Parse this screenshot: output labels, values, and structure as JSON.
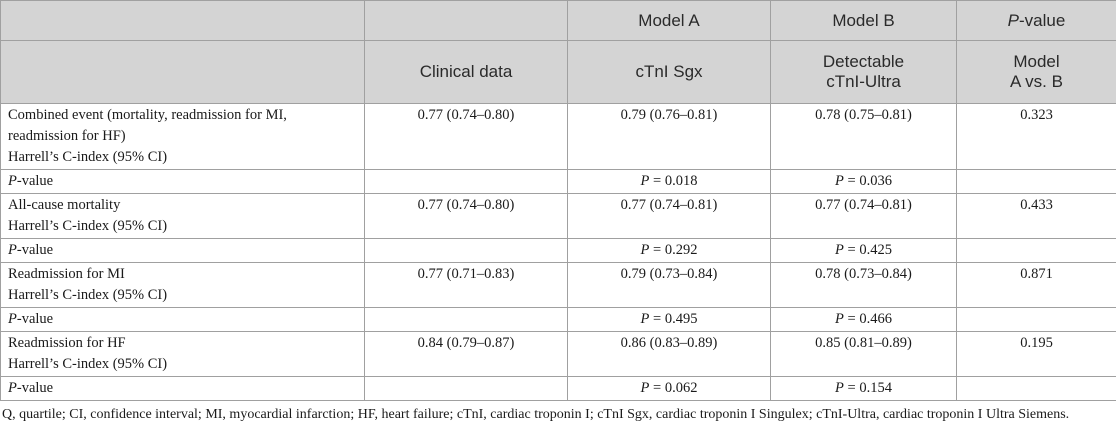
{
  "header": {
    "row1": {
      "model_a": "Model A",
      "model_b": "Model B",
      "pvalue_italic": "P",
      "pvalue_rest": "-value"
    },
    "row2": {
      "clinical": "Clinical data",
      "model_a": "cTnI Sgx",
      "model_b_line1": "Detectable",
      "model_b_line2": "cTnI-Ultra",
      "pvalue_line1": "Model",
      "pvalue_line2": "A vs. B"
    }
  },
  "rows": [
    {
      "label_lines": [
        "Combined event (mortality, readmission for MI,",
        "readmission for HF)",
        "Harrell’s C-index (95% CI)"
      ],
      "clinical": "0.77 (0.74–0.80)",
      "model_a": "0.79 (0.76–0.81)",
      "model_b": "0.78 (0.75–0.81)",
      "p": "0.323"
    },
    {
      "label_italic": "P",
      "label_rest": "-value",
      "model_a_italic": "P",
      "model_a_rest": " = 0.018",
      "model_b_italic": "P",
      "model_b_rest": " = 0.036"
    },
    {
      "label_lines": [
        "All-cause mortality",
        "Harrell’s C-index (95% CI)"
      ],
      "clinical": "0.77 (0.74–0.80)",
      "model_a": "0.77 (0.74–0.81)",
      "model_b": "0.77 (0.74–0.81)",
      "p": "0.433"
    },
    {
      "label_italic": "P",
      "label_rest": "-value",
      "model_a_italic": "P",
      "model_a_rest": " = 0.292",
      "model_b_italic": "P",
      "model_b_rest": " = 0.425"
    },
    {
      "label_lines": [
        "Readmission for MI",
        "Harrell’s C-index (95% CI)"
      ],
      "clinical": "0.77 (0.71–0.83)",
      "model_a": "0.79 (0.73–0.84)",
      "model_b": "0.78 (0.73–0.84)",
      "p": "0.871"
    },
    {
      "label_italic": "P",
      "label_rest": "-value",
      "model_a_italic": "P",
      "model_a_rest": " = 0.495",
      "model_b_italic": "P",
      "model_b_rest": " = 0.466"
    },
    {
      "label_lines": [
        "Readmission for HF",
        "Harrell’s C-index (95% CI)"
      ],
      "clinical": "0.84 (0.79–0.87)",
      "model_a": "0.86 (0.83–0.89)",
      "model_b": "0.85 (0.81–0.89)",
      "p": "0.195"
    },
    {
      "label_italic": "P",
      "label_rest": "-value",
      "model_a_italic": "P",
      "model_a_rest": " = 0.062",
      "model_b_italic": "P",
      "model_b_rest": " = 0.154"
    }
  ],
  "footnote": "Q, quartile; CI, confidence interval; MI, myocardial infarction; HF, heart failure; cTnI, cardiac troponin I; cTnI Sgx, cardiac troponin I Singulex; cTnI-Ultra, cardiac troponin I Ultra Siemens."
}
